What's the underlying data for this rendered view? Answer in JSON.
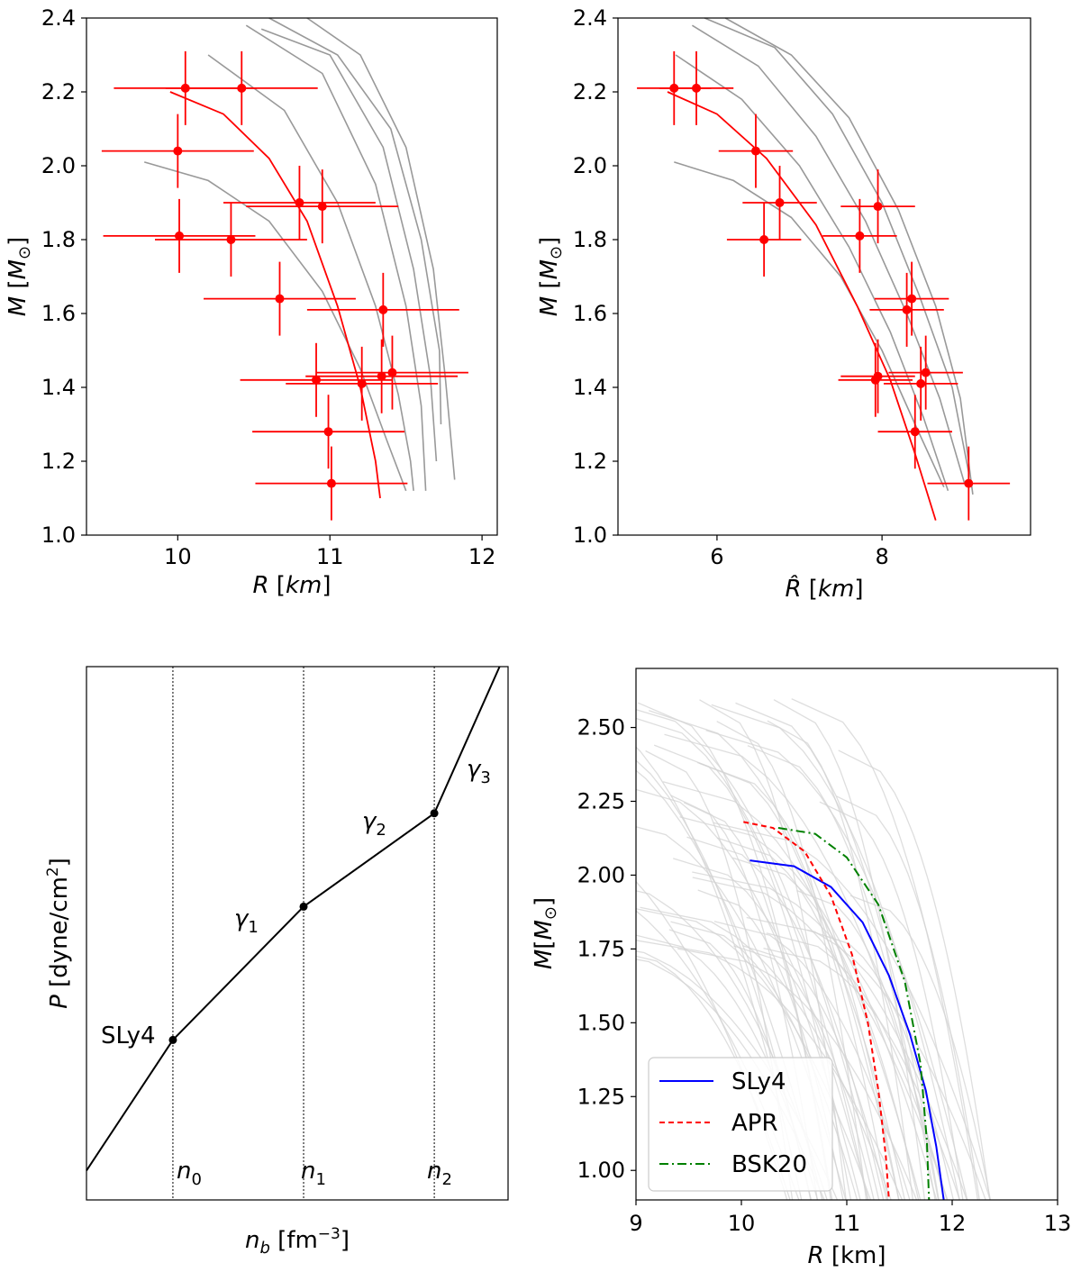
{
  "chart_data": [
    {
      "id": "top-left",
      "type": "scatter",
      "title": "",
      "xlabel": "R [km]",
      "ylabel": "M [M_sun]",
      "xlim": [
        9.4,
        12.1
      ],
      "ylim": [
        1.0,
        2.4
      ],
      "xticks": [
        10,
        11,
        12
      ],
      "yticks": [
        "1.0",
        "1.2",
        "1.4",
        "1.6",
        "1.8",
        "2.0",
        "2.2",
        "2.4"
      ],
      "points": [
        {
          "x": 10.05,
          "y": 2.21,
          "xerr": 0.47,
          "yerr": 0.1
        },
        {
          "x": 10.42,
          "y": 2.21,
          "xerr": 0.5,
          "yerr": 0.1
        },
        {
          "x": 10.0,
          "y": 2.04,
          "xerr": 0.5,
          "yerr": 0.1
        },
        {
          "x": 10.01,
          "y": 1.81,
          "xerr": 0.5,
          "yerr": 0.1
        },
        {
          "x": 10.35,
          "y": 1.8,
          "xerr": 0.5,
          "yerr": 0.1
        },
        {
          "x": 10.8,
          "y": 1.9,
          "xerr": 0.5,
          "yerr": 0.1
        },
        {
          "x": 10.95,
          "y": 1.89,
          "xerr": 0.5,
          "yerr": 0.1
        },
        {
          "x": 10.67,
          "y": 1.64,
          "xerr": 0.5,
          "yerr": 0.1
        },
        {
          "x": 11.35,
          "y": 1.61,
          "xerr": 0.5,
          "yerr": 0.1
        },
        {
          "x": 10.91,
          "y": 1.42,
          "xerr": 0.5,
          "yerr": 0.1
        },
        {
          "x": 11.21,
          "y": 1.41,
          "xerr": 0.5,
          "yerr": 0.1
        },
        {
          "x": 11.34,
          "y": 1.43,
          "xerr": 0.5,
          "yerr": 0.1
        },
        {
          "x": 11.41,
          "y": 1.44,
          "xerr": 0.5,
          "yerr": 0.1
        },
        {
          "x": 10.99,
          "y": 1.28,
          "xerr": 0.5,
          "yerr": 0.1
        },
        {
          "x": 11.01,
          "y": 1.14,
          "xerr": 0.5,
          "yerr": 0.1
        }
      ],
      "fit_curve": {
        "color": "#ff0000",
        "x": [
          9.95,
          10.3,
          10.6,
          10.85,
          11.05,
          11.2,
          11.3,
          11.33
        ],
        "y": [
          2.2,
          2.14,
          2.02,
          1.85,
          1.62,
          1.4,
          1.2,
          1.1
        ]
      },
      "grey_curves": [
        {
          "x": [
            9.78,
            10.2,
            10.6,
            10.95,
            11.2,
            11.38,
            11.5
          ],
          "y": [
            2.01,
            1.96,
            1.85,
            1.66,
            1.45,
            1.25,
            1.12
          ]
        },
        {
          "x": [
            10.2,
            10.7,
            11.05,
            11.3,
            11.45,
            11.53,
            11.55
          ],
          "y": [
            2.3,
            2.15,
            1.9,
            1.62,
            1.38,
            1.2,
            1.12
          ]
        },
        {
          "x": [
            10.45,
            10.95,
            11.3,
            11.5,
            11.6,
            11.63
          ],
          "y": [
            2.38,
            2.25,
            1.95,
            1.62,
            1.35,
            1.12
          ]
        },
        {
          "x": [
            10.55,
            11.0,
            11.35,
            11.55,
            11.66,
            11.7
          ],
          "y": [
            2.37,
            2.3,
            2.05,
            1.72,
            1.43,
            1.2
          ]
        },
        {
          "x": [
            10.6,
            11.05,
            11.4,
            11.6,
            11.72,
            11.73
          ],
          "y": [
            2.4,
            2.3,
            2.1,
            1.8,
            1.5,
            1.3
          ]
        },
        {
          "x": [
            10.85,
            11.2,
            11.5,
            11.68,
            11.76,
            11.82
          ],
          "y": [
            2.4,
            2.3,
            2.05,
            1.72,
            1.42,
            1.15
          ]
        }
      ]
    },
    {
      "id": "top-right",
      "type": "scatter",
      "title": "",
      "xlabel": "R̂ [km]",
      "ylabel": "M [M_sun]",
      "xlim": [
        4.8,
        9.8
      ],
      "ylim": [
        1.0,
        2.4
      ],
      "xticks": [
        6,
        8
      ],
      "yticks": [
        "1.0",
        "1.2",
        "1.4",
        "1.6",
        "1.8",
        "2.0",
        "2.2",
        "2.4"
      ],
      "points": [
        {
          "x": 5.48,
          "y": 2.21,
          "xerr": 0.45,
          "yerr": 0.1
        },
        {
          "x": 5.75,
          "y": 2.21,
          "xerr": 0.45,
          "yerr": 0.1
        },
        {
          "x": 6.47,
          "y": 2.04,
          "xerr": 0.45,
          "yerr": 0.1
        },
        {
          "x": 6.76,
          "y": 1.9,
          "xerr": 0.45,
          "yerr": 0.1
        },
        {
          "x": 6.57,
          "y": 1.8,
          "xerr": 0.45,
          "yerr": 0.1
        },
        {
          "x": 7.73,
          "y": 1.81,
          "xerr": 0.45,
          "yerr": 0.1
        },
        {
          "x": 7.95,
          "y": 1.89,
          "xerr": 0.45,
          "yerr": 0.1
        },
        {
          "x": 8.36,
          "y": 1.64,
          "xerr": 0.45,
          "yerr": 0.1
        },
        {
          "x": 8.3,
          "y": 1.61,
          "xerr": 0.45,
          "yerr": 0.1
        },
        {
          "x": 7.92,
          "y": 1.42,
          "xerr": 0.45,
          "yerr": 0.1
        },
        {
          "x": 7.95,
          "y": 1.43,
          "xerr": 0.45,
          "yerr": 0.1
        },
        {
          "x": 8.47,
          "y": 1.41,
          "xerr": 0.45,
          "yerr": 0.1
        },
        {
          "x": 8.53,
          "y": 1.44,
          "xerr": 0.45,
          "yerr": 0.1
        },
        {
          "x": 8.4,
          "y": 1.28,
          "xerr": 0.45,
          "yerr": 0.1
        },
        {
          "x": 9.05,
          "y": 1.14,
          "xerr": 0.5,
          "yerr": 0.1
        }
      ],
      "fit_curve": {
        "color": "#ff0000",
        "x": [
          5.4,
          6.0,
          6.6,
          7.2,
          7.7,
          8.1,
          8.4,
          8.65
        ],
        "y": [
          2.2,
          2.14,
          2.02,
          1.84,
          1.62,
          1.42,
          1.22,
          1.04
        ]
      },
      "grey_curves": [
        {
          "x": [
            5.48,
            6.2,
            6.9,
            7.5,
            8.0,
            8.4,
            8.75
          ],
          "y": [
            2.01,
            1.96,
            1.86,
            1.7,
            1.5,
            1.3,
            1.13
          ]
        },
        {
          "x": [
            5.5,
            6.3,
            7.0,
            7.6,
            8.1,
            8.5,
            8.8
          ],
          "y": [
            2.3,
            2.18,
            2.0,
            1.78,
            1.55,
            1.32,
            1.12
          ]
        },
        {
          "x": [
            5.7,
            6.5,
            7.2,
            7.8,
            8.3,
            8.7,
            9.0
          ],
          "y": [
            2.38,
            2.27,
            2.08,
            1.85,
            1.6,
            1.37,
            1.14
          ]
        },
        {
          "x": [
            5.85,
            6.7,
            7.4,
            8.0,
            8.45,
            8.85,
            9.05
          ],
          "y": [
            2.4,
            2.32,
            2.14,
            1.9,
            1.65,
            1.4,
            1.17
          ]
        },
        {
          "x": [
            6.1,
            6.9,
            7.6,
            8.2,
            8.65,
            8.95,
            9.1
          ],
          "y": [
            2.4,
            2.3,
            2.13,
            1.88,
            1.62,
            1.37,
            1.11
          ]
        }
      ]
    },
    {
      "id": "bottom-left",
      "type": "line",
      "title": "",
      "xlabel": "n_b [fm^-3]",
      "ylabel": "P [dyne/cm^2]",
      "xlim": [
        0,
        1
      ],
      "ylim": [
        0,
        1
      ],
      "x": [
        0.0,
        0.205,
        0.515,
        0.825,
        0.98
      ],
      "y": [
        0.055,
        0.3,
        0.55,
        0.725,
        1.0
      ],
      "knots": [
        {
          "x": 0.205,
          "y": 0.3
        },
        {
          "x": 0.515,
          "y": 0.55
        },
        {
          "x": 0.825,
          "y": 0.725
        }
      ],
      "vlines": [
        0.205,
        0.515,
        0.825
      ],
      "annotations": {
        "sly4": "SLy4",
        "g1": "γ1",
        "g2": "γ2",
        "g3": "γ3",
        "n0": "n0",
        "n1": "n1",
        "n2": "n2"
      }
    },
    {
      "id": "bottom-right",
      "type": "line",
      "title": "",
      "xlabel": "R [km]",
      "ylabel": "M [M_sun]",
      "xlim": [
        9,
        13
      ],
      "ylim": [
        0.9,
        2.7
      ],
      "xticks": [
        9,
        10,
        11,
        12,
        13
      ],
      "yticks": [
        "1.00",
        "1.25",
        "1.50",
        "1.75",
        "2.00",
        "2.25",
        "2.50"
      ],
      "legend": {
        "position": "lower-left",
        "entries": [
          "SLy4",
          "APR",
          "BSK20"
        ]
      },
      "series": [
        {
          "name": "SLy4",
          "color": "#0000ff",
          "dash": "solid",
          "x": [
            10.08,
            10.5,
            10.85,
            11.15,
            11.4,
            11.6,
            11.75,
            11.85,
            11.92
          ],
          "y": [
            2.05,
            2.03,
            1.96,
            1.84,
            1.66,
            1.46,
            1.27,
            1.08,
            0.9
          ]
        },
        {
          "name": "APR",
          "color": "#ff0000",
          "dash": "dashed",
          "x": [
            10.02,
            10.3,
            10.6,
            10.85,
            11.05,
            11.2,
            11.3,
            11.37,
            11.4
          ],
          "y": [
            2.18,
            2.16,
            2.08,
            1.93,
            1.73,
            1.5,
            1.27,
            1.05,
            0.9
          ]
        },
        {
          "name": "BSK20",
          "color": "#008000",
          "dash": "dashdot",
          "x": [
            10.35,
            10.7,
            11.0,
            11.3,
            11.55,
            11.7,
            11.76,
            11.78
          ],
          "y": [
            2.16,
            2.14,
            2.06,
            1.9,
            1.64,
            1.36,
            1.1,
            0.9
          ]
        }
      ],
      "background_curves": {
        "count": 60,
        "color": "#d3d3d3"
      }
    }
  ]
}
